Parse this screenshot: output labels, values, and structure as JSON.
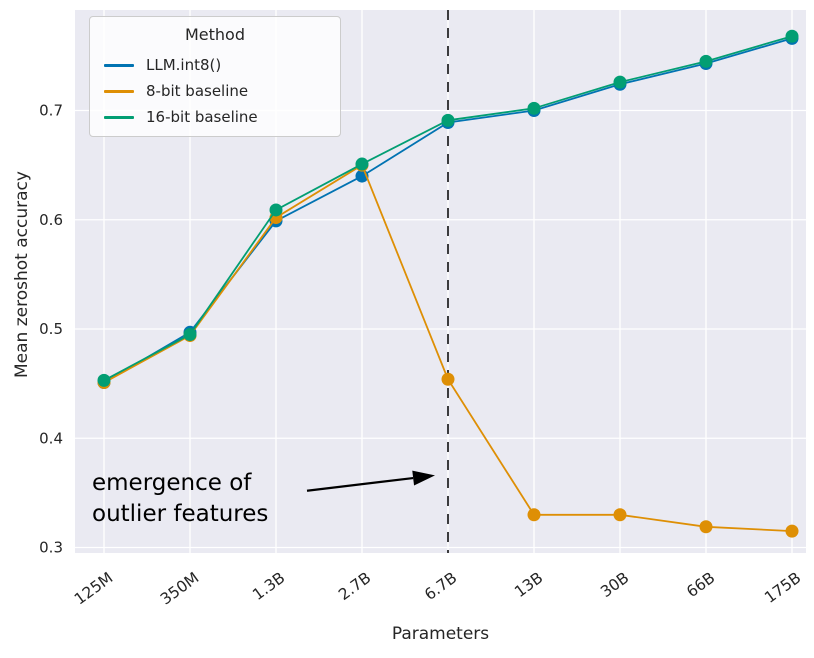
{
  "figure": {
    "background": "#ffffff",
    "plot_background": "#eaeaf2",
    "grid_color": "#ffffff",
    "text_color": "#262626"
  },
  "chart_data": {
    "type": "line",
    "title": "",
    "xlabel": "Parameters",
    "ylabel": "Mean zeroshot accuracy",
    "categories": [
      "125M",
      "350M",
      "1.3B",
      "2.7B",
      "6.7B",
      "13B",
      "30B",
      "66B",
      "175B"
    ],
    "yticks": [
      0.3,
      0.4,
      0.5,
      0.6,
      0.7
    ],
    "ylim": [
      0.295,
      0.792
    ],
    "grid": true,
    "legend": {
      "title": "Method",
      "position": "upper left"
    },
    "series": [
      {
        "name": "LLM.int8()",
        "color": "#0173b2",
        "values": [
          0.451,
          0.497,
          0.599,
          0.64,
          0.689,
          0.7,
          0.724,
          0.743,
          0.766
        ]
      },
      {
        "name": "8-bit baseline",
        "color": "#de8f05",
        "values": [
          0.451,
          0.494,
          0.602,
          0.65,
          0.454,
          0.33,
          0.33,
          0.319,
          0.315
        ]
      },
      {
        "name": "16-bit baseline",
        "color": "#029e73",
        "values": [
          0.453,
          0.495,
          0.609,
          0.651,
          0.691,
          0.702,
          0.726,
          0.745,
          0.768
        ]
      }
    ],
    "vline": {
      "at": "6.7B",
      "style": "dashed",
      "color": "#000000"
    },
    "annotation": {
      "line1": "emergence of",
      "line2": "outlier features",
      "arrow_to": "6.7B"
    }
  }
}
